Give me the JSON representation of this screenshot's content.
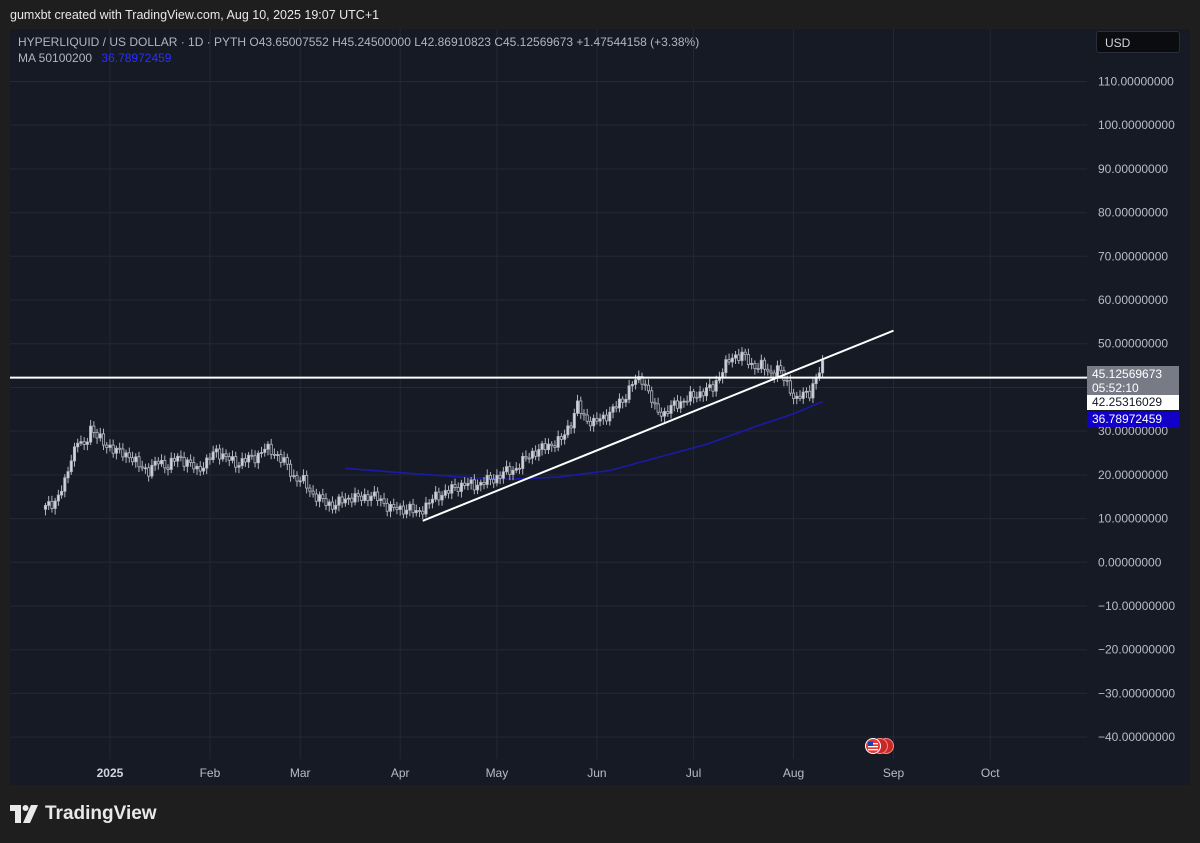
{
  "attribution": "gumxbt created with TradingView.com, Aug 10, 2025 19:07 UTC+1",
  "legend": {
    "symbol": "HYPERLIQUID / US DOLLAR · 1D · PYTH",
    "open": "O43.65007552",
    "high": "H45.24500000",
    "low": "L42.86910823",
    "close": "C45.12569673",
    "change": "+1.47544158 (+3.38%)",
    "ma_label": "MA 50100200",
    "ma_value": "36.78972459"
  },
  "currency_button": {
    "label": "USD"
  },
  "price_tags": {
    "last_price": "45.12569673",
    "countdown": "05:52:10",
    "horizontal_level": "42.25316029",
    "ma_price": "36.78972459"
  },
  "brand": {
    "name": "TradingView",
    "icon": "tradingview-logo-icon"
  },
  "flags_icon": "us-flag-events-icon",
  "colors": {
    "background": "#161a25",
    "candle": "#b2b5be",
    "ma_line": "#1a1aa8",
    "trendline": "#ffffff",
    "grid": "#242837"
  },
  "chart_data": {
    "type": "candlestick",
    "symbol": "HYPERLIQUID / US DOLLAR",
    "interval": "1D",
    "source": "PYTH",
    "y_ticks": [
      110,
      100,
      90,
      80,
      70,
      60,
      50,
      40,
      30,
      20,
      10,
      0,
      -10,
      -20,
      -30,
      -40
    ],
    "y_tick_labels": [
      "110.00000000",
      "100.00000000",
      "90.00000000",
      "80.00000000",
      "70.00000000",
      "60.00000000",
      "50.00000000",
      "40.00000000",
      "30.00000000",
      "20.00000000",
      "10.00000000",
      "0.00000000",
      "−10.00000000",
      "−20.00000000",
      "−30.00000000",
      "−40.00000000"
    ],
    "ylim": [
      -45,
      122
    ],
    "x_labels": [
      {
        "date": "2025-01-01",
        "label": "2025",
        "bold": true
      },
      {
        "date": "2025-02-01",
        "label": "Feb"
      },
      {
        "date": "2025-03-01",
        "label": "Mar"
      },
      {
        "date": "2025-04-01",
        "label": "Apr"
      },
      {
        "date": "2025-05-01",
        "label": "May"
      },
      {
        "date": "2025-06-01",
        "label": "Jun"
      },
      {
        "date": "2025-07-01",
        "label": "Jul"
      },
      {
        "date": "2025-08-01",
        "label": "Aug"
      },
      {
        "date": "2025-09-01",
        "label": "Sep"
      },
      {
        "date": "2025-10-01",
        "label": "Oct"
      }
    ],
    "x_range": [
      "2024-12-01",
      "2025-10-31"
    ],
    "close_series": [
      [
        "2024-12-12",
        12.5
      ],
      [
        "2024-12-15",
        14
      ],
      [
        "2024-12-18",
        18
      ],
      [
        "2024-12-20",
        24
      ],
      [
        "2024-12-22",
        28
      ],
      [
        "2024-12-24",
        26
      ],
      [
        "2024-12-26",
        31
      ],
      [
        "2024-12-28",
        29
      ],
      [
        "2024-12-30",
        27
      ],
      [
        "2025-01-01",
        26.5
      ],
      [
        "2025-01-04",
        25
      ],
      [
        "2025-01-07",
        24.5
      ],
      [
        "2025-01-10",
        22
      ],
      [
        "2025-01-13",
        21
      ],
      [
        "2025-01-16",
        23
      ],
      [
        "2025-01-19",
        22
      ],
      [
        "2025-01-22",
        24
      ],
      [
        "2025-01-25",
        23
      ],
      [
        "2025-01-28",
        21
      ],
      [
        "2025-01-31",
        23
      ],
      [
        "2025-02-03",
        25.5
      ],
      [
        "2025-02-06",
        24
      ],
      [
        "2025-02-09",
        22.5
      ],
      [
        "2025-02-12",
        23.5
      ],
      [
        "2025-02-15",
        24
      ],
      [
        "2025-02-18",
        26
      ],
      [
        "2025-02-21",
        25
      ],
      [
        "2025-02-24",
        23
      ],
      [
        "2025-02-27",
        19.5
      ],
      [
        "2025-03-02",
        18.5
      ],
      [
        "2025-03-05",
        15.5
      ],
      [
        "2025-03-08",
        14
      ],
      [
        "2025-03-11",
        13
      ],
      [
        "2025-03-14",
        14
      ],
      [
        "2025-03-17",
        15
      ],
      [
        "2025-03-20",
        14.5
      ],
      [
        "2025-03-23",
        15.5
      ],
      [
        "2025-03-26",
        14
      ],
      [
        "2025-03-29",
        12.5
      ],
      [
        "2025-04-01",
        12
      ],
      [
        "2025-04-04",
        12.5
      ],
      [
        "2025-04-06",
        11
      ],
      [
        "2025-04-09",
        13
      ],
      [
        "2025-04-12",
        15
      ],
      [
        "2025-04-15",
        16
      ],
      [
        "2025-04-18",
        17
      ],
      [
        "2025-04-21",
        18
      ],
      [
        "2025-04-24",
        17.5
      ],
      [
        "2025-04-27",
        18.5
      ],
      [
        "2025-04-30",
        19
      ],
      [
        "2025-05-03",
        20.5
      ],
      [
        "2025-05-06",
        21
      ],
      [
        "2025-05-09",
        23
      ],
      [
        "2025-05-12",
        25
      ],
      [
        "2025-05-15",
        26
      ],
      [
        "2025-05-18",
        27
      ],
      [
        "2025-05-21",
        28
      ],
      [
        "2025-05-24",
        32
      ],
      [
        "2025-05-26",
        36
      ],
      [
        "2025-05-28",
        33
      ],
      [
        "2025-05-31",
        32
      ],
      [
        "2025-06-03",
        33
      ],
      [
        "2025-06-06",
        35
      ],
      [
        "2025-06-09",
        37
      ],
      [
        "2025-06-12",
        41
      ],
      [
        "2025-06-15",
        42
      ],
      [
        "2025-06-17",
        39
      ],
      [
        "2025-06-19",
        35
      ],
      [
        "2025-06-22",
        34
      ],
      [
        "2025-06-25",
        36
      ],
      [
        "2025-06-28",
        37
      ],
      [
        "2025-07-01",
        38
      ],
      [
        "2025-07-04",
        39
      ],
      [
        "2025-07-07",
        40
      ],
      [
        "2025-07-10",
        44
      ],
      [
        "2025-07-13",
        47
      ],
      [
        "2025-07-16",
        47.5
      ],
      [
        "2025-07-19",
        45
      ],
      [
        "2025-07-22",
        45
      ],
      [
        "2025-07-25",
        43
      ],
      [
        "2025-07-27",
        44.5
      ],
      [
        "2025-07-29",
        42
      ],
      [
        "2025-07-31",
        39.5
      ],
      [
        "2025-08-02",
        37
      ],
      [
        "2025-08-04",
        38.5
      ],
      [
        "2025-08-06",
        39
      ],
      [
        "2025-08-08",
        42
      ],
      [
        "2025-08-10",
        45.1
      ]
    ],
    "ma_line": [
      [
        "2025-03-15",
        21.5
      ],
      [
        "2025-04-01",
        20.5
      ],
      [
        "2025-04-20",
        19.5
      ],
      [
        "2025-05-05",
        19
      ],
      [
        "2025-05-20",
        19.5
      ],
      [
        "2025-06-05",
        21
      ],
      [
        "2025-06-20",
        24
      ],
      [
        "2025-07-05",
        27
      ],
      [
        "2025-07-20",
        31
      ],
      [
        "2025-08-01",
        34
      ],
      [
        "2025-08-10",
        36.79
      ]
    ],
    "trendline": {
      "start": [
        "2025-04-08",
        9.5
      ],
      "end": [
        "2025-09-01",
        53
      ]
    },
    "horizontal_level": 42.25316029,
    "last_price": 45.12569673,
    "ma_value": 36.78972459,
    "grid": true,
    "legend_position": "top-left"
  }
}
